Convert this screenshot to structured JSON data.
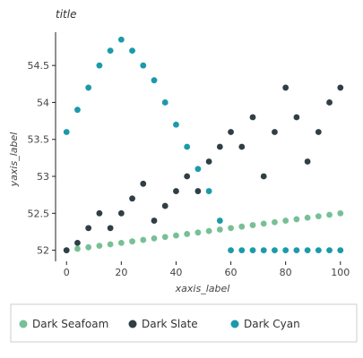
{
  "chart_data": {
    "type": "scatter",
    "title": "title",
    "xlabel": "xaxis_label",
    "ylabel": "yaxis_label",
    "xlim": [
      -4,
      104
    ],
    "ylim": [
      51.85,
      54.95
    ],
    "x_ticks": [
      0,
      20,
      40,
      60,
      80,
      100
    ],
    "y_ticks": [
      52,
      52.5,
      53,
      53.5,
      54,
      54.5
    ],
    "y_tick_labels": [
      "52",
      "52.5",
      "53",
      "53.5",
      "54",
      "54.5"
    ],
    "grid": false,
    "legend_position": "bottom",
    "series": [
      {
        "name": "Dark Seafoam",
        "color": "#77c095",
        "x": [
          0,
          4,
          8,
          12,
          16,
          20,
          24,
          28,
          32,
          36,
          40,
          44,
          48,
          52,
          56,
          60,
          64,
          68,
          72,
          76,
          80,
          84,
          88,
          92,
          96,
          100
        ],
        "y": [
          52.0,
          52.02,
          52.04,
          52.06,
          52.08,
          52.1,
          52.12,
          52.14,
          52.16,
          52.18,
          52.2,
          52.22,
          52.24,
          52.26,
          52.28,
          52.3,
          52.32,
          52.34,
          52.36,
          52.38,
          52.4,
          52.42,
          52.44,
          52.46,
          52.48,
          52.5
        ]
      },
      {
        "name": "Dark Slate",
        "color": "#2e3f45",
        "x": [
          0,
          4,
          8,
          12,
          16,
          20,
          24,
          28,
          32,
          36,
          40,
          44,
          48,
          52,
          56,
          60,
          64,
          68,
          72,
          76,
          80,
          84,
          88,
          92,
          96,
          100
        ],
        "y": [
          52.0,
          52.1,
          52.3,
          52.5,
          52.3,
          52.5,
          52.7,
          52.9,
          52.4,
          52.6,
          52.8,
          53.0,
          52.8,
          53.2,
          53.4,
          53.6,
          53.4,
          53.8,
          53.0,
          53.6,
          54.2,
          53.8,
          53.2,
          53.6,
          54.0,
          54.2
        ]
      },
      {
        "name": "Dark Cyan",
        "color": "#1b9aaa",
        "x": [
          0,
          4,
          8,
          12,
          16,
          20,
          24,
          28,
          32,
          36,
          40,
          44,
          48,
          52,
          56,
          60,
          64,
          68,
          72,
          76,
          80,
          84,
          88,
          92,
          96,
          100
        ],
        "y": [
          53.6,
          53.9,
          54.2,
          54.5,
          54.7,
          54.85,
          54.7,
          54.5,
          54.3,
          54.0,
          53.7,
          53.4,
          53.1,
          52.8,
          52.4,
          52.0,
          52.0,
          52.0,
          52.0,
          52.0,
          52.0,
          52.0,
          52.0,
          52.0,
          52.0,
          52.0
        ]
      }
    ]
  }
}
